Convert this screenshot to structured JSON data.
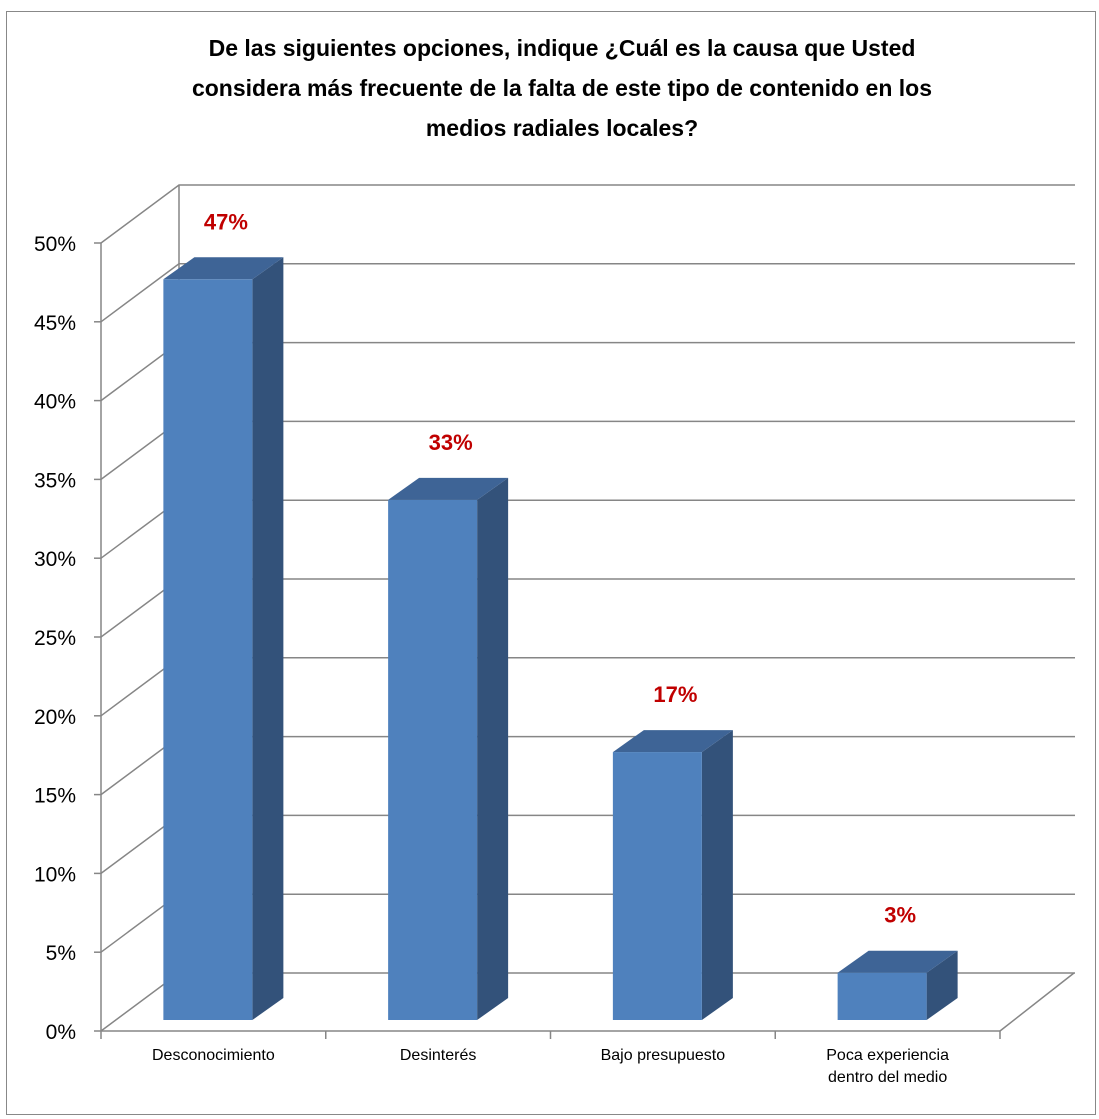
{
  "chart_data": {
    "type": "bar",
    "title_lines": [
      "De las siguientes opciones, indique ¿Cuál es la causa que Usted",
      "considera más frecuente de la falta de este tipo de contenido en los",
      "medios radiales locales?"
    ],
    "categories": [
      [
        "Desconocimiento"
      ],
      [
        "Desinterés"
      ],
      [
        "Bajo presupuesto"
      ],
      [
        "Poca experiencia",
        "dentro del medio"
      ]
    ],
    "values": [
      47,
      33,
      17,
      3
    ],
    "data_labels": [
      "47%",
      "33%",
      "17%",
      "3%"
    ],
    "y_ticks": [
      "0%",
      "5%",
      "10%",
      "15%",
      "20%",
      "25%",
      "30%",
      "35%",
      "40%",
      "45%",
      "50%"
    ],
    "ylim": [
      0,
      50
    ],
    "xlabel": "",
    "ylabel": "",
    "grid": true,
    "legend": "none",
    "style": "3d-column",
    "colors": {
      "bar_front": "#4F81BD",
      "bar_side": "#33527A",
      "bar_top": "#3E6496",
      "data_label": "#C00000",
      "grid": "#868686"
    }
  }
}
